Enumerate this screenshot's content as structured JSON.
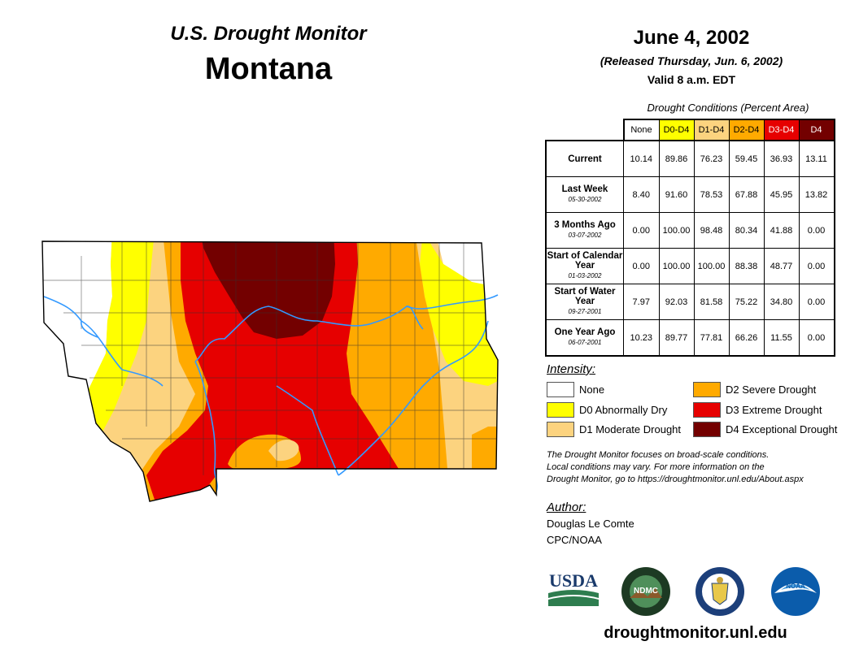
{
  "header": {
    "monitor_title": "U.S. Drought Monitor",
    "state": "Montana",
    "date": "June 4, 2002",
    "released": "(Released Thursday, Jun. 6, 2002)",
    "valid": "Valid 8 a.m. EDT"
  },
  "table": {
    "caption": "Drought Conditions (Percent Area)",
    "columns": [
      {
        "label": "None",
        "color": "#ffffff",
        "text_color": "#000000"
      },
      {
        "label": "D0-D4",
        "color": "#ffff00",
        "text_color": "#000000"
      },
      {
        "label": "D1-D4",
        "color": "#fcd37f",
        "text_color": "#000000"
      },
      {
        "label": "D2-D4",
        "color": "#ffaa00",
        "text_color": "#000000"
      },
      {
        "label": "D3-D4",
        "color": "#e60000",
        "text_color": "#ffffff"
      },
      {
        "label": "D4",
        "color": "#730000",
        "text_color": "#ffffff"
      }
    ],
    "rows": [
      {
        "label": "Current",
        "date": "",
        "values": [
          "10.14",
          "89.86",
          "76.23",
          "59.45",
          "36.93",
          "13.11"
        ]
      },
      {
        "label": "Last Week",
        "date": "05-30-2002",
        "values": [
          "8.40",
          "91.60",
          "78.53",
          "67.88",
          "45.95",
          "13.82"
        ]
      },
      {
        "label": "3 Months Ago",
        "date": "03-07-2002",
        "values": [
          "0.00",
          "100.00",
          "98.48",
          "80.34",
          "41.88",
          "0.00"
        ]
      },
      {
        "label": "Start of Calendar Year",
        "date": "01-03-2002",
        "values": [
          "0.00",
          "100.00",
          "100.00",
          "88.38",
          "48.77",
          "0.00"
        ]
      },
      {
        "label": "Start of Water Year",
        "date": "09-27-2001",
        "values": [
          "7.97",
          "92.03",
          "81.58",
          "75.22",
          "34.80",
          "0.00"
        ]
      },
      {
        "label": "One Year Ago",
        "date": "06-07-2001",
        "values": [
          "10.23",
          "89.77",
          "77.81",
          "66.26",
          "11.55",
          "0.00"
        ]
      }
    ]
  },
  "legend": {
    "title": "Intensity:",
    "items": [
      {
        "label": "None",
        "color": "#ffffff"
      },
      {
        "label": "D0 Abnormally Dry",
        "color": "#ffff00"
      },
      {
        "label": "D1 Moderate Drought",
        "color": "#fcd37f"
      },
      {
        "label": "D2 Severe Drought",
        "color": "#ffaa00"
      },
      {
        "label": "D3 Extreme Drought",
        "color": "#e60000"
      },
      {
        "label": "D4 Exceptional Drought",
        "color": "#730000"
      }
    ]
  },
  "note": {
    "line1": "The Drought Monitor focuses on broad-scale conditions.",
    "line2": "Local conditions may vary. For more information on the",
    "line3": "Drought Monitor, go to https://droughtmonitor.unl.edu/About.aspx"
  },
  "author": {
    "title": "Author:",
    "name": "Douglas Le Comte",
    "org": "CPC/NOAA"
  },
  "logos": {
    "usda": "USDA",
    "ndmc": "NDMC",
    "noaa": "NOAA"
  },
  "website": "droughtmonitor.unl.edu",
  "map_colors": {
    "none": "#ffffff",
    "d0": "#ffff00",
    "d1": "#fcd37f",
    "d2": "#ffaa00",
    "d3": "#e60000",
    "d4": "#730000",
    "river": "#3399ff"
  }
}
